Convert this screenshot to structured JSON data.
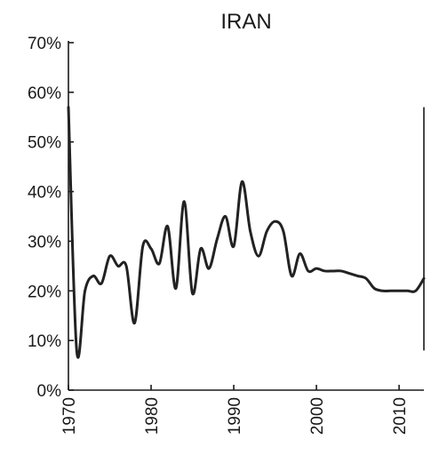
{
  "chart_data": {
    "type": "line",
    "title": "IRAN",
    "xlabel": "",
    "ylabel": "",
    "xlim": [
      1970,
      2013
    ],
    "ylim": [
      0,
      70
    ],
    "x_ticks": [
      1970,
      1980,
      1990,
      2000,
      2010
    ],
    "x_tick_labels": [
      "1970",
      "1980",
      "1990",
      "2000",
      "2010"
    ],
    "y_ticks": [
      0,
      10,
      20,
      30,
      40,
      50,
      60,
      70
    ],
    "y_tick_labels": [
      "0%",
      "10%",
      "20%",
      "30%",
      "40%",
      "50%",
      "60%",
      "70%"
    ],
    "grid": false,
    "legend": "none",
    "line_color": "#222222",
    "series": [
      {
        "x": [
          1970,
          1971,
          1972,
          1973,
          1974,
          1975,
          1976,
          1977,
          1978,
          1979,
          1980,
          1981,
          1982,
          1983,
          1984,
          1985,
          1986,
          1987,
          1988,
          1989,
          1990,
          1991,
          1992,
          1993,
          1994,
          1995,
          1996,
          1997,
          1998,
          1999,
          2000,
          2001,
          2002,
          2003,
          2004,
          2005,
          2006,
          2007,
          2008,
          2009,
          2010,
          2011,
          2012,
          2013
        ],
        "y": [
          57,
          8,
          20,
          23,
          21.5,
          27,
          25,
          25,
          13.5,
          29,
          28.5,
          25.5,
          33,
          20.5,
          38,
          19.5,
          28.5,
          24.5,
          30.5,
          35,
          29,
          42,
          32,
          27,
          32,
          34,
          32,
          23,
          27.5,
          24,
          24.5,
          24,
          24,
          24,
          23.5,
          23,
          22.5,
          20.5,
          20,
          20,
          20,
          20,
          20,
          22.5
        ]
      }
    ]
  }
}
